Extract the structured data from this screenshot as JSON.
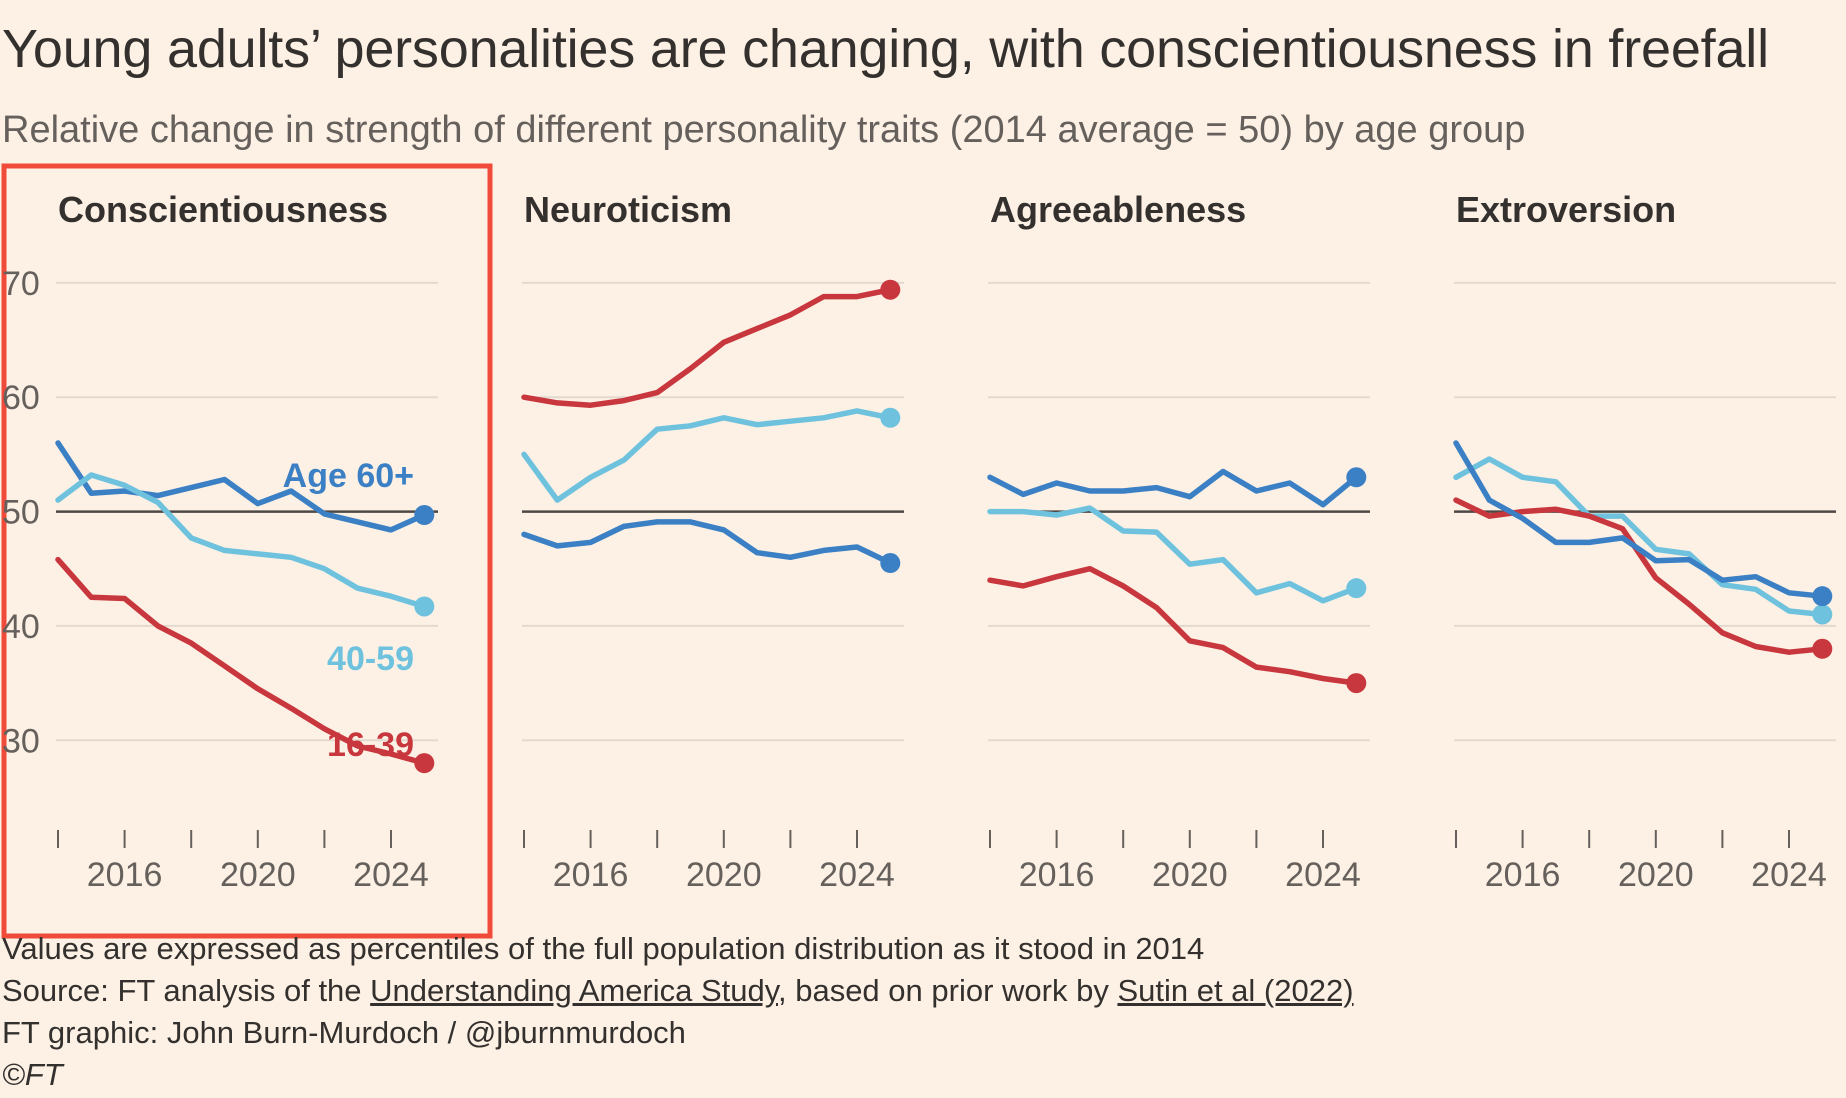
{
  "header": {
    "title": "Young adults’ personalities are changing, with conscientiousness in freefall",
    "subtitle": "Relative change in strength of different personality traits (2014 average = 50) by age group"
  },
  "colors": {
    "age_16_39": "#c8373d",
    "age_40_59": "#6ec2de",
    "age_60_plus": "#3b80c4",
    "baseline": "#4d4845",
    "highlight_box": "#f04a3a",
    "background": "#fdf1e5"
  },
  "chart_data": {
    "type": "line",
    "x": [
      2014,
      2015,
      2016,
      2017,
      2018,
      2019,
      2020,
      2021,
      2022,
      2023,
      2024,
      2025
    ],
    "ylim": [
      26,
      72
    ],
    "yticks": [
      "70",
      "60",
      "50",
      "40",
      "30"
    ],
    "xticks": [
      "2016",
      "2020",
      "2024"
    ],
    "reference_line": 50,
    "grid": true,
    "highlighted_panel": "Conscientiousness",
    "series_labels": {
      "age_60_plus": "Age 60+",
      "age_40_59": "40-59",
      "age_16_39": "16-39"
    },
    "panels": [
      {
        "title": "Conscientiousness",
        "series": [
          {
            "key": "age_60_plus",
            "values": [
              56,
              51.6,
              51.8,
              51.4,
              52.1,
              52.8,
              50.7,
              51.8,
              49.8,
              49.1,
              48.4,
              49.7
            ]
          },
          {
            "key": "age_40_59",
            "values": [
              51,
              53.2,
              52.3,
              50.8,
              47.7,
              46.6,
              46.3,
              46.0,
              45.0,
              43.3,
              42.6,
              41.7
            ]
          },
          {
            "key": "age_16_39",
            "values": [
              45.8,
              42.5,
              42.4,
              40.0,
              38.5,
              36.5,
              34.5,
              32.8,
              31.0,
              29.5,
              28.8,
              28.0
            ]
          }
        ]
      },
      {
        "title": "Neuroticism",
        "series": [
          {
            "key": "age_16_39",
            "values": [
              60,
              59.5,
              59.3,
              59.7,
              60.4,
              62.5,
              64.8,
              66.0,
              67.2,
              68.8,
              68.8,
              69.4
            ]
          },
          {
            "key": "age_40_59",
            "values": [
              55,
              51,
              53,
              54.5,
              57.2,
              57.5,
              58.2,
              57.6,
              57.9,
              58.2,
              58.8,
              58.2
            ]
          },
          {
            "key": "age_60_plus",
            "values": [
              48,
              47.0,
              47.3,
              48.7,
              49.1,
              49.1,
              48.4,
              46.4,
              46.0,
              46.6,
              46.9,
              45.5
            ]
          }
        ]
      },
      {
        "title": "Agreeableness",
        "series": [
          {
            "key": "age_60_plus",
            "values": [
              53,
              51.5,
              52.5,
              51.8,
              51.8,
              52.1,
              51.3,
              53.5,
              51.8,
              52.5,
              50.6,
              53.0
            ]
          },
          {
            "key": "age_40_59",
            "values": [
              50,
              50,
              49.7,
              50.3,
              48.3,
              48.2,
              45.4,
              45.8,
              42.9,
              43.7,
              42.2,
              43.3
            ]
          },
          {
            "key": "age_16_39",
            "values": [
              44,
              43.5,
              44.3,
              45.0,
              43.5,
              41.6,
              38.7,
              38.1,
              36.4,
              36.0,
              35.4,
              35.0
            ]
          }
        ]
      },
      {
        "title": "Extroversion",
        "series": [
          {
            "key": "age_40_59",
            "values": [
              53,
              54.6,
              53.0,
              52.6,
              49.6,
              49.6,
              46.7,
              46.3,
              43.6,
              43.2,
              41.3,
              41.0
            ]
          },
          {
            "key": "age_16_39",
            "values": [
              51,
              49.6,
              50.0,
              50.2,
              49.6,
              48.5,
              44.2,
              41.9,
              39.4,
              38.2,
              37.7,
              38.0
            ]
          },
          {
            "key": "age_60_plus",
            "values": [
              56,
              51,
              49.4,
              47.3,
              47.3,
              47.7,
              45.7,
              45.8,
              44.0,
              44.3,
              42.9,
              42.6
            ]
          }
        ]
      }
    ]
  },
  "footer": {
    "note": "Values are expressed as percentiles of the full population distribution as it stood in 2014",
    "source_prefix": "Source: FT analysis of the ",
    "source_link1": "Understanding America Study",
    "source_middle": ", based on prior work by ",
    "source_link2": "Sutin et al (2022)",
    "graphic": "FT graphic: John Burn-Murdoch / @jburnmurdoch",
    "copyright": "©FT"
  }
}
